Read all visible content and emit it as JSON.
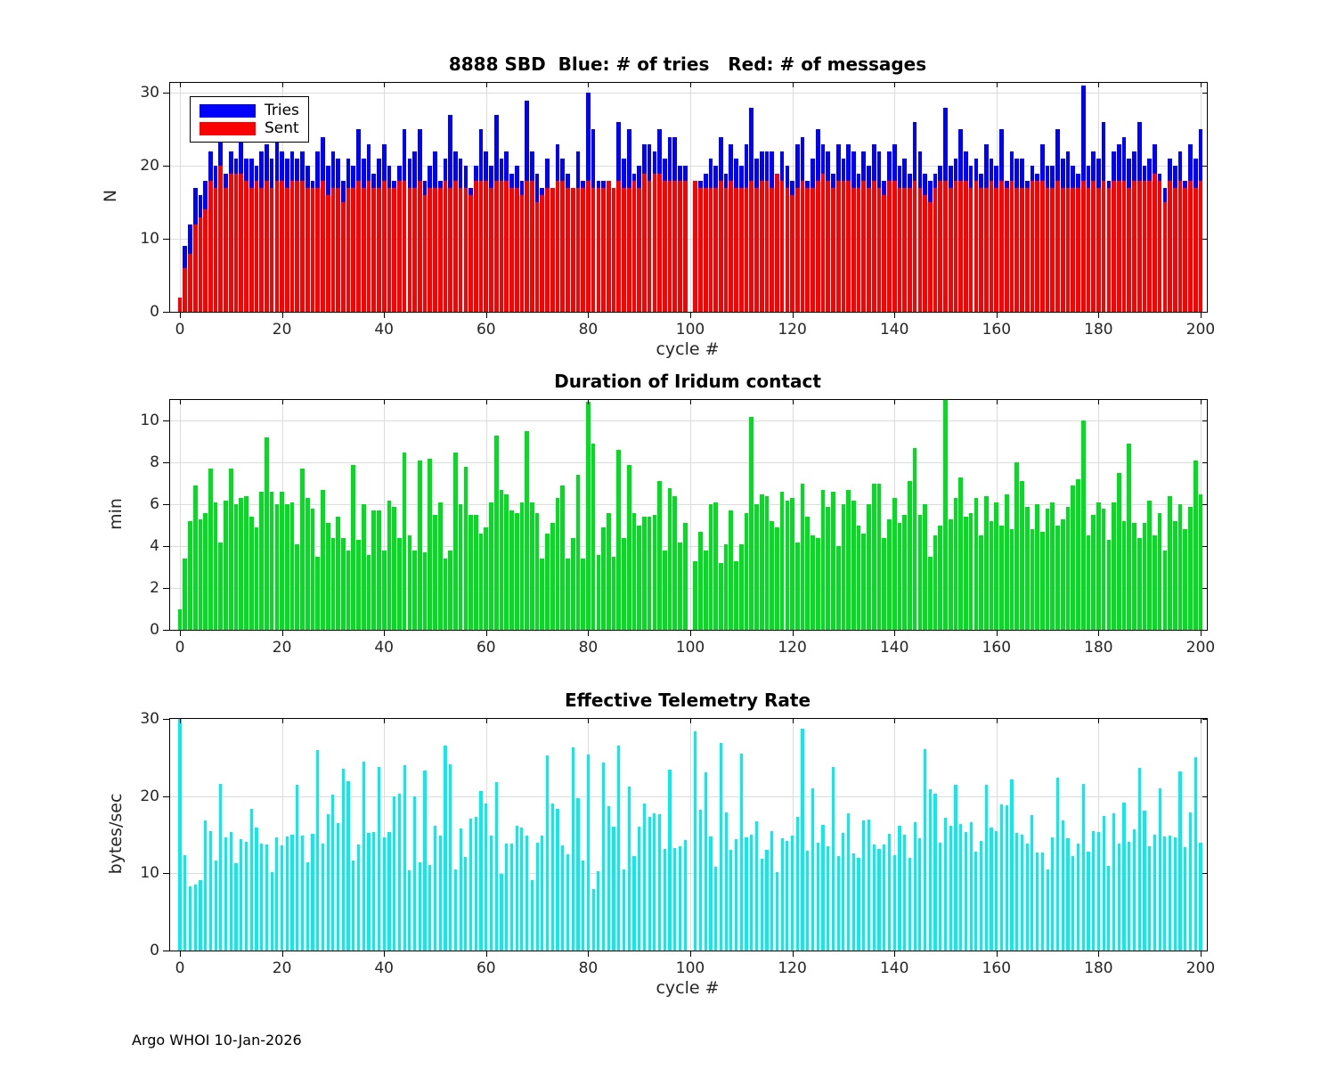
{
  "page": {
    "footer": "Argo WHOI 10-Jan-2026",
    "background": "#ffffff"
  },
  "chart_data": [
    {
      "type": "bar",
      "subtype": "overlaid-bars",
      "title": "8888 SBD  Blue: # of tries   Red: # of messages",
      "xlabel": "cycle #",
      "ylabel": "N",
      "grid": true,
      "legend_position": "top-left-inside",
      "xlim": [
        -2,
        201.5
      ],
      "ylim": [
        0,
        31.4
      ],
      "yticks": [
        0,
        10,
        20,
        30
      ],
      "xticks": [
        0,
        20,
        40,
        60,
        80,
        100,
        120,
        140,
        160,
        180,
        200
      ],
      "x_is_cycle_index": true,
      "legend": [
        {
          "label": "Tries",
          "color": "#0000ff"
        },
        {
          "label": "Sent",
          "color": "#ff0000"
        }
      ],
      "series": [
        {
          "name": "Tries",
          "color": "#0000ff",
          "values": [
            2,
            9,
            12,
            17,
            16,
            18,
            22,
            20,
            25,
            19,
            22,
            21,
            24,
            21,
            21,
            20,
            22,
            23,
            21,
            24,
            22,
            21,
            22,
            21,
            22,
            20,
            18,
            22,
            24,
            20,
            22,
            21,
            18,
            21,
            20,
            25,
            21,
            23,
            19,
            21,
            23,
            20,
            18,
            20,
            25,
            21,
            22,
            25,
            18,
            20,
            22,
            18,
            21,
            27,
            22,
            21,
            20,
            17,
            20,
            25,
            22,
            20,
            27,
            21,
            22,
            19,
            20,
            18,
            29,
            22,
            19,
            17,
            21,
            17,
            23,
            21,
            19,
            17,
            22,
            18,
            30,
            25,
            18,
            18,
            18,
            17,
            26,
            21,
            25,
            19,
            20,
            23,
            23,
            22,
            25,
            21,
            24,
            24,
            20,
            20,
            null,
            18,
            18,
            19,
            21,
            20,
            24,
            19,
            23,
            21,
            20,
            23,
            28,
            21,
            22,
            22,
            22,
            19,
            22,
            20,
            18,
            23,
            24,
            18,
            21,
            25,
            23,
            22,
            19,
            23,
            21,
            23,
            22,
            19,
            22,
            20,
            23,
            22,
            18,
            22,
            23,
            20,
            21,
            19,
            26,
            22,
            19,
            18,
            19,
            20,
            28,
            20,
            21,
            25,
            22,
            20,
            21,
            19,
            23,
            21,
            20,
            25,
            18,
            22,
            21,
            21,
            18,
            20,
            19,
            23,
            20,
            20,
            25,
            21,
            22,
            20,
            19,
            31,
            20,
            22,
            21,
            26,
            18,
            22,
            23,
            24,
            21,
            22,
            26,
            20,
            21,
            23,
            19,
            17,
            21,
            20,
            22,
            18,
            23,
            21,
            25
          ]
        },
        {
          "name": "Sent",
          "color": "#ff0000",
          "values": [
            2,
            6,
            8,
            12,
            13,
            14,
            18,
            17,
            20,
            17,
            19,
            19,
            19,
            18,
            17,
            18,
            17,
            18,
            17,
            18,
            18,
            17,
            18,
            18,
            18,
            17,
            17,
            17,
            18,
            16,
            17,
            17,
            15,
            17,
            17,
            18,
            17,
            18,
            17,
            17,
            18,
            17,
            17,
            18,
            18,
            17,
            17,
            18,
            16,
            17,
            17,
            17,
            18,
            17,
            18,
            17,
            17,
            16,
            18,
            18,
            18,
            17,
            18,
            18,
            18,
            17,
            17,
            16,
            18,
            18,
            15,
            16,
            17,
            17,
            18,
            18,
            17,
            17,
            17,
            17,
            18,
            17,
            17,
            17,
            18,
            17,
            18,
            17,
            17,
            18,
            17,
            19,
            18,
            19,
            19,
            18,
            18,
            18,
            18,
            18,
            null,
            18,
            17,
            17,
            17,
            17,
            18,
            17,
            18,
            17,
            17,
            17,
            18,
            17,
            18,
            18,
            17,
            19,
            18,
            17,
            16,
            17,
            18,
            17,
            17,
            18,
            19,
            18,
            17,
            18,
            18,
            18,
            17,
            17,
            18,
            17,
            18,
            17,
            16,
            18,
            18,
            17,
            17,
            17,
            18,
            17,
            16,
            15,
            17,
            18,
            18,
            17,
            18,
            18,
            18,
            17,
            18,
            17,
            17,
            18,
            17,
            18,
            17,
            18,
            17,
            17,
            17,
            18,
            18,
            18,
            17,
            17,
            18,
            17,
            17,
            17,
            17,
            18,
            17,
            18,
            17,
            18,
            17,
            18,
            18,
            18,
            17,
            18,
            18,
            18,
            18,
            19,
            18,
            15,
            18,
            17,
            18,
            17,
            18,
            17,
            18
          ]
        }
      ]
    },
    {
      "type": "bar",
      "title": "Duration of Iridum contact",
      "ylabel": "min",
      "grid": true,
      "xlim": [
        -2,
        201.5
      ],
      "ylim": [
        0,
        11
      ],
      "yticks": [
        0,
        2,
        4,
        6,
        8,
        10
      ],
      "xticks": [
        0,
        20,
        40,
        60,
        80,
        100,
        120,
        140,
        160,
        180,
        200
      ],
      "x_is_cycle_index": true,
      "series": [
        {
          "name": "Duration (min)",
          "color": "#00df1e",
          "values": [
            1.0,
            3.4,
            5.2,
            6.9,
            5.3,
            5.6,
            7.7,
            6.1,
            4.2,
            6.2,
            7.7,
            6.0,
            6.3,
            6.4,
            5.4,
            4.9,
            6.6,
            9.2,
            6.6,
            6.0,
            6.6,
            6.0,
            6.1,
            4.1,
            7.7,
            6.3,
            5.8,
            3.5,
            6.7,
            5.1,
            4.4,
            5.4,
            4.4,
            3.8,
            7.9,
            4.3,
            6.0,
            3.6,
            5.7,
            5.7,
            3.8,
            6.2,
            5.9,
            4.4,
            8.5,
            4.5,
            3.8,
            8.1,
            3.7,
            8.2,
            5.5,
            6.1,
            3.4,
            3.8,
            8.5,
            6.0,
            7.8,
            5.5,
            5.5,
            4.6,
            4.9,
            6.1,
            9.3,
            6.7,
            6.5,
            5.7,
            5.6,
            6.1,
            9.5,
            6.1,
            5.6,
            3.4,
            4.6,
            5.1,
            6.3,
            6.9,
            3.4,
            4.4,
            7.4,
            3.4,
            10.9,
            8.9,
            3.6,
            4.9,
            5.6,
            3.5,
            8.6,
            4.4,
            7.9,
            5.6,
            5.0,
            5.4,
            5.4,
            5.5,
            7.1,
            3.8,
            6.8,
            6.4,
            4.2,
            5.1,
            null,
            3.3,
            4.7,
            3.8,
            6.0,
            6.1,
            3.2,
            4.1,
            5.7,
            3.3,
            4.1,
            5.6,
            10.2,
            6.0,
            6.5,
            6.4,
            5.2,
            4.9,
            6.6,
            6.2,
            6.3,
            4.2,
            7.0,
            5.4,
            4.5,
            4.4,
            6.7,
            5.9,
            6.6,
            4.0,
            6.0,
            6.7,
            6.2,
            5.0,
            4.6,
            6.0,
            7.0,
            7.0,
            4.4,
            5.3,
            6.3,
            5.1,
            5.5,
            7.1,
            8.7,
            5.5,
            6.0,
            3.5,
            4.5,
            5.0,
            11.0,
            5.3,
            6.3,
            7.3,
            5.4,
            5.6,
            6.3,
            4.5,
            6.4,
            5.2,
            6.1,
            5.0,
            6.5,
            4.8,
            8.0,
            7.1,
            5.9,
            4.8,
            6.0,
            4.7,
            5.8,
            6.1,
            5.0,
            5.3,
            5.9,
            6.9,
            7.2,
            10.0,
            4.5,
            5.5,
            6.1,
            5.8,
            4.3,
            6.1,
            7.5,
            5.2,
            8.9,
            5.1,
            4.4,
            5.1,
            6.2,
            4.5,
            5.6,
            3.8,
            6.4,
            5.2,
            6.0,
            4.8,
            5.9,
            8.1,
            6.5
          ]
        }
      ]
    },
    {
      "type": "bar",
      "title": "Effective Telemetry Rate",
      "xlabel": "cycle #",
      "ylabel": "bytes/sec",
      "grid": true,
      "xlim": [
        -2,
        201.5
      ],
      "ylim": [
        0,
        30
      ],
      "yticks": [
        0,
        10,
        20,
        30
      ],
      "xticks": [
        0,
        20,
        40,
        60,
        80,
        100,
        120,
        140,
        160,
        180,
        200
      ],
      "x_is_cycle_index": true,
      "series": [
        {
          "name": "Rate (bytes/sec)",
          "color": "#00f0f0",
          "values": [
            30.0,
            12.4,
            8.3,
            8.5,
            9.1,
            16.8,
            15.5,
            11.7,
            21.6,
            14.7,
            15.3,
            11.3,
            14.4,
            14.1,
            18.3,
            15.9,
            13.8,
            13.7,
            10.1,
            14.7,
            13.6,
            14.8,
            15.0,
            21.5,
            14.9,
            11.4,
            15.1,
            26.0,
            13.9,
            17.6,
            20.2,
            16.5,
            23.5,
            21.9,
            11.6,
            13.7,
            24.5,
            15.2,
            15.3,
            23.8,
            14.7,
            15.3,
            20.0,
            20.3,
            24.0,
            10.4,
            20.0,
            11.4,
            23.3,
            11.1,
            16.1,
            14.9,
            26.5,
            24.1,
            10.5,
            15.8,
            12.1,
            17.1,
            17.3,
            20.6,
            19.0,
            14.9,
            21.8,
            9.9,
            13.8,
            13.9,
            16.1,
            15.9,
            14.9,
            9.1,
            14.0,
            14.9,
            25.3,
            19.0,
            18.3,
            13.6,
            12.5,
            26.3,
            19.7,
            11.6,
            25.4,
            8.0,
            10.3,
            24.4,
            18.7,
            16.0,
            26.5,
            10.5,
            21.2,
            12.2,
            16.0,
            19.0,
            17.3,
            17.8,
            17.6,
            13.1,
            23.4,
            13.3,
            13.5,
            14.3,
            null,
            28.4,
            18.2,
            23.1,
            14.8,
            10.9,
            26.9,
            17.9,
            13.0,
            14.4,
            25.5,
            14.6,
            15.0,
            16.7,
            11.9,
            13.0,
            15.5,
            10.1,
            14.5,
            14.2,
            14.9,
            17.3,
            28.7,
            12.9,
            21.0,
            14.0,
            16.3,
            13.5,
            23.8,
            12.2,
            15.2,
            17.8,
            12.6,
            12.0,
            16.9,
            17.0,
            13.7,
            13.1,
            13.7,
            15.1,
            12.4,
            16.2,
            15.0,
            12.0,
            16.6,
            14.5,
            26.1,
            20.9,
            20.3,
            14.0,
            17.2,
            16.2,
            21.5,
            16.4,
            15.3,
            16.6,
            12.8,
            14.2,
            21.5,
            15.9,
            15.5,
            18.9,
            18.8,
            22.2,
            15.2,
            15.0,
            13.8,
            17.5,
            12.7,
            12.7,
            10.5,
            14.6,
            22.4,
            16.8,
            14.5,
            12.2,
            13.9,
            21.6,
            12.8,
            15.5,
            15.4,
            17.4,
            11.0,
            17.8,
            13.9,
            19.2,
            14.1,
            15.7,
            23.7,
            18.1,
            13.5,
            15.0,
            21.0,
            14.8,
            14.9,
            14.6,
            23.2,
            13.4,
            17.9,
            25.0,
            14.0
          ]
        }
      ]
    }
  ]
}
